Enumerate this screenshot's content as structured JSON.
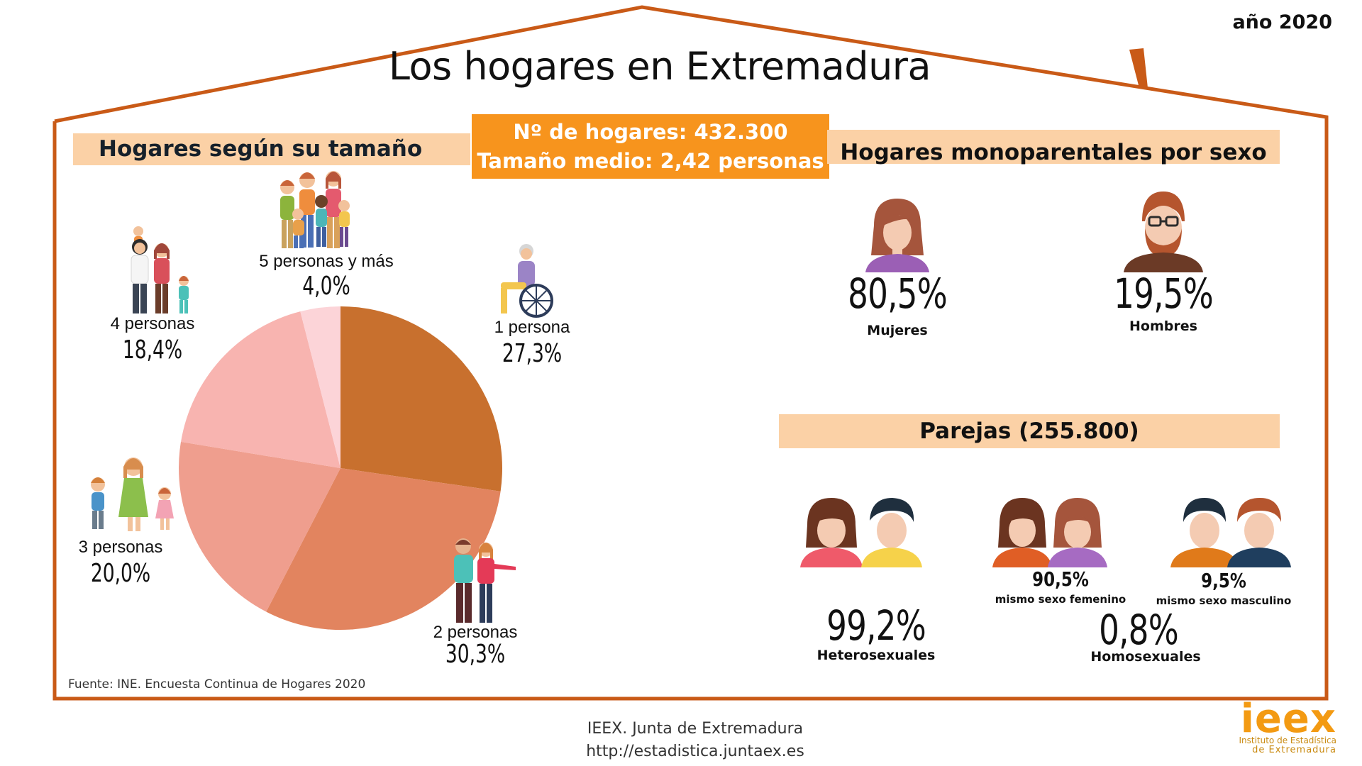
{
  "header": {
    "title": "Los hogares en Extremadura",
    "year": "año 2020"
  },
  "summary": {
    "households": "Nº de hogares: 432.300",
    "mean_size": "Tamaño medio: 2,42 personas"
  },
  "size_section": {
    "heading": "Hogares según su tamaño",
    "source": "Fuente: INE. Encuesta Continua de Hogares  2020"
  },
  "chart_data": {
    "type": "pie",
    "categories": [
      "1 persona",
      "2 personas",
      "3 personas",
      "4 personas",
      "5 personas y más"
    ],
    "values": [
      27.3,
      30.3,
      20.0,
      18.4,
      4.0
    ],
    "value_labels": [
      "27,3%",
      "30,3%",
      "20,0%",
      "18,4%",
      "4,0%"
    ],
    "colors": [
      "#c8702e",
      "#e2845f",
      "#ef9e8e",
      "#f8b4b0",
      "#fcd4d8"
    ]
  },
  "single_parent": {
    "heading": "Hogares monoparentales por sexo",
    "women_pct": "80,5%",
    "women_label": "Mujeres",
    "men_pct": "19,5%",
    "men_label": "Hombres"
  },
  "couples": {
    "heading": "Parejas (255.800)",
    "hetero_pct": "99,2%",
    "hetero_label": "Heterosexuales",
    "homo_pct": "0,8%",
    "homo_label": "Homosexuales",
    "female_pct": "90,5%",
    "female_label": "mismo sexo femenino",
    "male_pct": "9,5%",
    "male_label": "mismo sexo masculino"
  },
  "footer": {
    "org": "IEEX. Junta de Extremadura",
    "url": "http://estadistica.juntaex.es"
  },
  "logo": {
    "text": "ieex",
    "sub1": "Instituto de Estadística",
    "sub2": "de Extremadura"
  },
  "colors": {
    "house_outline": "#c95a17",
    "band": "#fbd1a6",
    "summary_box": "#f7941d"
  }
}
